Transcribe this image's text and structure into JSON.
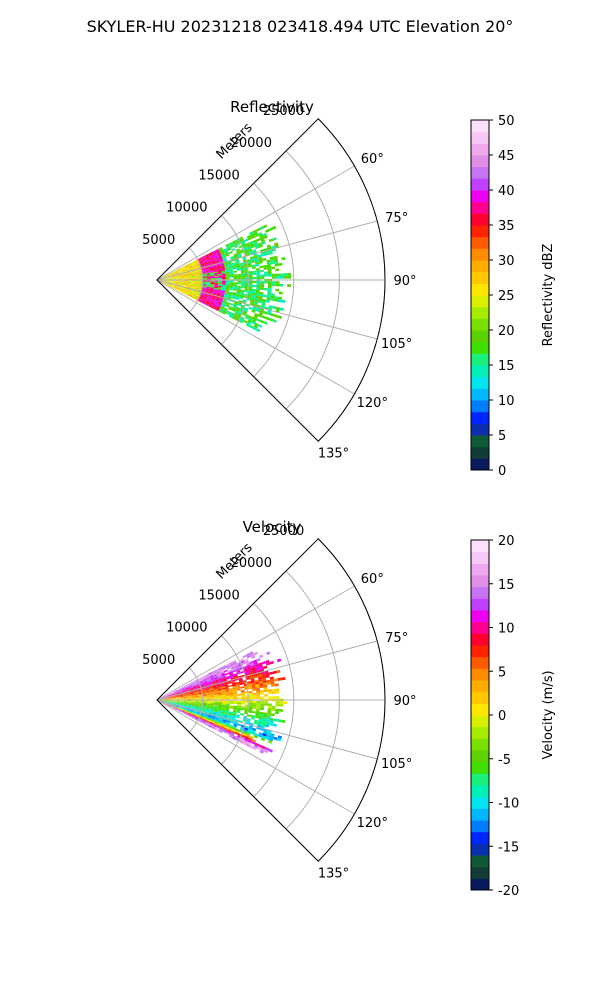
{
  "figure_title": "SKYLER-HU  20231218  023418.494 UTC Elevation 20°",
  "chart_data": [
    {
      "type": "polar-sector",
      "title": "Reflectivity",
      "range_label": "Meters",
      "theta_ticks": [
        "60°",
        "75°",
        "90°",
        "105°",
        "120°",
        "135°"
      ],
      "theta_values_deg": [
        60,
        75,
        90,
        105,
        120,
        135
      ],
      "theta_lim_deg": [
        45,
        135
      ],
      "radial_ticks": [
        "5000",
        "10000",
        "15000",
        "20000",
        "25000"
      ],
      "radial_values": [
        5000,
        10000,
        15000,
        20000,
        25000
      ],
      "r_max": 25000,
      "grid": true,
      "colorbar": {
        "label": "Reflectivity dBZ",
        "range": [
          0,
          50
        ],
        "ticks": [
          "0",
          "5",
          "10",
          "15",
          "20",
          "25",
          "30",
          "35",
          "40",
          "45",
          "50"
        ],
        "tick_values": [
          0,
          5,
          10,
          15,
          20,
          25,
          30,
          35,
          40,
          45,
          50
        ],
        "colors": [
          "#0a1a5e",
          "#113d34",
          "#0e5a36",
          "#0c2fb0",
          "#0026ff",
          "#007cff",
          "#00b8ff",
          "#00e5ef",
          "#00f0b8",
          "#19f07a",
          "#3fe000",
          "#5cd200",
          "#7ae000",
          "#a6ec00",
          "#d8f000",
          "#ffe600",
          "#ffc800",
          "#ffae00",
          "#ff8c00",
          "#ff5a00",
          "#ff2400",
          "#ff0030",
          "#ff0090",
          "#f000f0",
          "#c040ff",
          "#c673f5",
          "#e18fe6",
          "#eea8ee",
          "#f6c8f6",
          "#fae0fa"
        ]
      },
      "data_extent": {
        "theta_deg": [
          63,
          117
        ],
        "range_m": [
          0,
          14000
        ],
        "peak_band": {
          "range_m": [
            5000,
            7500
          ],
          "values_dbz": [
            35,
            40
          ]
        },
        "near_values_dbz": [
          22,
          30
        ],
        "far_values_dbz": [
          14,
          20
        ]
      }
    },
    {
      "type": "polar-sector",
      "title": "Velocity",
      "range_label": "Meters",
      "theta_ticks": [
        "60°",
        "75°",
        "90°",
        "105°",
        "120°",
        "135°"
      ],
      "theta_values_deg": [
        60,
        75,
        90,
        105,
        120,
        135
      ],
      "theta_lim_deg": [
        45,
        135
      ],
      "radial_ticks": [
        "5000",
        "10000",
        "15000",
        "20000",
        "25000"
      ],
      "radial_values": [
        5000,
        10000,
        15000,
        20000,
        25000
      ],
      "r_max": 25000,
      "grid": true,
      "colorbar": {
        "label": "Velocity (m/s)",
        "range": [
          -20,
          20
        ],
        "ticks": [
          "-20",
          "-15",
          "-10",
          "-5",
          "0",
          "5",
          "10",
          "15",
          "20"
        ],
        "tick_values": [
          -20,
          -15,
          -10,
          -5,
          0,
          5,
          10,
          15,
          20
        ],
        "colors": [
          "#0a1a5e",
          "#113d34",
          "#0e5a36",
          "#0c2fb0",
          "#0026ff",
          "#007cff",
          "#00b8ff",
          "#00e5ef",
          "#00f0b8",
          "#19f07a",
          "#3fe000",
          "#5cd200",
          "#7ae000",
          "#a6ec00",
          "#d8f000",
          "#ffe600",
          "#ffc800",
          "#ffae00",
          "#ff8c00",
          "#ff5a00",
          "#ff2400",
          "#ff0030",
          "#ff0090",
          "#f000f0",
          "#c040ff",
          "#c673f5",
          "#e18fe6",
          "#eea8ee",
          "#f6c8f6",
          "#fae0fa"
        ]
      },
      "data_extent": {
        "theta_deg": [
          63,
          117
        ],
        "range_m": [
          0,
          14000
        ],
        "velocity_by_azimuth": [
          {
            "theta_deg": 65,
            "value_ms": 15
          },
          {
            "theta_deg": 72,
            "value_ms": 10
          },
          {
            "theta_deg": 80,
            "value_ms": 6
          },
          {
            "theta_deg": 88,
            "value_ms": 1
          },
          {
            "theta_deg": 95,
            "value_ms": -4
          },
          {
            "theta_deg": 102,
            "value_ms": -9
          },
          {
            "theta_deg": 108,
            "value_ms": -12
          },
          {
            "theta_deg": 114,
            "value_ms": 15
          }
        ]
      }
    }
  ]
}
